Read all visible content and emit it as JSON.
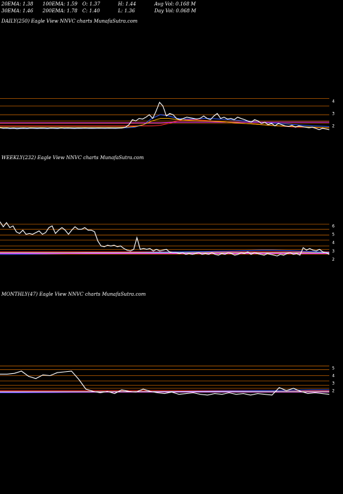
{
  "header": {
    "row1": [
      {
        "key": "ema20",
        "text": "20EMA: 1.38"
      },
      {
        "key": "ema100",
        "text": "100EMA: 1.59"
      },
      {
        "key": "open",
        "text": "O: 1.37"
      },
      {
        "key": "high",
        "text": "H: 1.44"
      },
      {
        "key": "avgvol",
        "text": "Avg Vol: 0.168 M"
      }
    ],
    "row2": [
      {
        "key": "ema30",
        "text": "30EMA: 1.46"
      },
      {
        "key": "ema200",
        "text": "200EMA: 1.78"
      },
      {
        "key": "close",
        "text": "C: 1.40"
      },
      {
        "key": "low",
        "text": "L: 1.36"
      },
      {
        "key": "dayvol",
        "text": "Day Vol: 0.068 M"
      }
    ]
  },
  "colors": {
    "background": "#000000",
    "price": "#ffffff",
    "level_lines": "#b85c00",
    "ema_red": "#ff2a2a",
    "ema_blue": "#2f5bff",
    "ema_magenta": "#ff33ff",
    "ema_orange": "#ffb000",
    "ema_white": "#ffffff"
  },
  "chart_data": [
    {
      "type": "line",
      "title": "DAILY(250) Eagle   View  NNVC charts MunafaSutra.com",
      "y_ticks": [
        "4",
        "3",
        "2"
      ],
      "level_lines": [
        4.2,
        3.6,
        2.9,
        2.4,
        2.2
      ],
      "price": [
        1.85,
        1.8,
        1.82,
        1.78,
        1.8,
        1.77,
        1.79,
        1.8,
        1.78,
        1.82,
        1.8,
        1.79,
        1.81,
        1.8,
        1.78,
        1.82,
        1.8,
        1.79,
        1.83,
        1.8,
        1.82,
        1.8,
        1.79,
        1.81,
        1.8,
        1.82,
        1.8,
        1.81,
        1.8,
        1.82,
        1.81,
        1.8,
        1.82,
        1.81,
        1.8,
        1.82,
        1.83,
        1.9,
        2.1,
        2.5,
        2.4,
        2.6,
        2.55,
        2.7,
        2.9,
        2.6,
        3.2,
        3.9,
        3.6,
        2.8,
        3.0,
        2.9,
        2.6,
        2.5,
        2.6,
        2.7,
        2.65,
        2.6,
        2.55,
        2.62,
        2.8,
        2.6,
        2.5,
        2.8,
        3.0,
        2.6,
        2.7,
        2.55,
        2.6,
        2.5,
        2.7,
        2.6,
        2.5,
        2.4,
        2.3,
        2.5,
        2.4,
        2.2,
        2.3,
        2.1,
        2.2,
        2.0,
        2.2,
        2.1,
        2.0,
        1.95,
        2.05,
        1.9,
        2.0,
        1.95,
        1.9,
        1.85,
        1.9,
        1.8,
        1.7,
        1.8,
        1.75,
        1.7
      ],
      "emas": [
        {
          "color": "ema_red",
          "values": [
            2.0,
            2.0,
            2.0,
            2.0,
            2.0,
            2.0,
            2.0,
            2.0,
            2.0,
            2.0,
            2.0,
            2.0,
            2.0,
            2.0,
            2.0,
            2.0,
            2.0,
            2.0,
            2.0,
            2.05,
            2.2,
            2.4,
            2.5,
            2.5,
            2.45,
            2.4,
            2.35,
            2.3,
            2.25,
            2.2,
            2.15,
            2.1,
            2.05,
            2.0,
            1.95,
            1.9,
            1.9,
            1.88,
            1.86,
            1.84
          ]
        },
        {
          "color": "ema_blue",
          "values": [
            1.85,
            1.85,
            1.85,
            1.85,
            1.85,
            1.85,
            1.85,
            1.85,
            1.85,
            1.85,
            1.85,
            1.85,
            1.85,
            1.85,
            1.85,
            1.85,
            1.9,
            2.1,
            2.6,
            2.9,
            2.8,
            2.6,
            2.55,
            2.55,
            2.6,
            2.6,
            2.55,
            2.5,
            2.45,
            2.4,
            2.35,
            2.3,
            2.25,
            2.2,
            2.15,
            2.1,
            2.05,
            2.0,
            1.98,
            1.95
          ]
        },
        {
          "color": "ema_magenta",
          "values": [
            2.25,
            2.25,
            2.25,
            2.25,
            2.25,
            2.25,
            2.25,
            2.25,
            2.25,
            2.25,
            2.25,
            2.25,
            2.25,
            2.25,
            2.25,
            2.25,
            2.25,
            2.25,
            2.25,
            2.25,
            2.28,
            2.3,
            2.3,
            2.3,
            2.3,
            2.3,
            2.3,
            2.3,
            2.3,
            2.3,
            2.3,
            2.3,
            2.3,
            2.3,
            2.3,
            2.3,
            2.3,
            2.3,
            2.3,
            2.3
          ]
        },
        {
          "color": "ema_orange",
          "values": [
            1.9,
            1.9,
            1.9,
            1.9,
            1.9,
            1.9,
            1.9,
            1.9,
            1.9,
            1.9,
            1.9,
            1.9,
            1.9,
            1.9,
            1.9,
            1.9,
            1.95,
            2.1,
            2.4,
            2.6,
            2.6,
            2.5,
            2.45,
            2.42,
            2.4,
            2.38,
            2.35,
            2.3,
            2.25,
            2.2,
            2.15,
            2.1,
            2.05,
            2.0,
            1.98,
            1.95,
            1.92,
            1.9,
            1.88,
            1.85
          ]
        }
      ]
    },
    {
      "type": "line",
      "title": "WEEKLY(232) Eagle   View  NNVC charts MunafaSutra.com",
      "y_ticks": [
        "6",
        "5",
        "4",
        "3",
        "2"
      ],
      "level_lines": [
        6.2,
        5.6,
        4.9,
        4.3,
        3.6,
        3.2,
        2.9,
        2.6
      ],
      "price": [
        6.5,
        5.9,
        6.4,
        5.8,
        6.0,
        5.3,
        5.1,
        5.5,
        5.0,
        5.1,
        5.0,
        5.2,
        5.4,
        5.0,
        5.2,
        5.8,
        6.0,
        5.1,
        5.5,
        5.8,
        5.5,
        5.0,
        5.5,
        5.9,
        5.6,
        5.6,
        5.8,
        5.5,
        5.5,
        5.3,
        4.2,
        3.6,
        3.5,
        3.7,
        3.6,
        3.7,
        3.5,
        3.6,
        3.3,
        3.1,
        3.0,
        3.2,
        4.6,
        3.2,
        3.3,
        3.2,
        3.3,
        3.0,
        3.2,
        3.0,
        3.1,
        3.2,
        2.9,
        2.8,
        2.8,
        2.7,
        2.8,
        2.6,
        2.7,
        2.6,
        2.7,
        2.8,
        2.6,
        2.7,
        2.6,
        2.8,
        2.6,
        2.5,
        2.7,
        2.6,
        2.8,
        2.7,
        2.5,
        2.6,
        2.8,
        2.7,
        2.9,
        2.6,
        2.8,
        2.7,
        2.6,
        2.5,
        2.7,
        2.6,
        2.5,
        2.4,
        2.6,
        2.5,
        2.7,
        2.8,
        2.6,
        2.7,
        2.5,
        3.4,
        3.1,
        3.3,
        3.1,
        3.0,
        3.2,
        2.9,
        2.8,
        2.6
      ],
      "emas": [
        {
          "color": "ema_red",
          "values": [
            2.9,
            2.9,
            2.9,
            2.9,
            2.9,
            2.9,
            2.9,
            2.9,
            2.9,
            2.9,
            2.9,
            2.9,
            2.9,
            2.9,
            2.9,
            2.9,
            2.9,
            2.9,
            2.9,
            2.9,
            2.9,
            2.9,
            2.9,
            2.9,
            2.9,
            2.9,
            2.9,
            2.9,
            2.9,
            2.9
          ]
        },
        {
          "color": "ema_blue",
          "values": [
            2.6,
            2.6,
            2.62,
            2.64,
            2.66,
            2.68,
            2.7,
            2.72,
            2.74,
            2.76,
            2.78,
            2.8,
            2.82,
            2.84,
            2.86,
            2.88,
            2.9,
            2.92,
            2.94,
            2.96,
            2.98,
            3.0,
            3.05,
            3.1,
            3.1,
            3.05,
            3.0,
            2.95,
            2.9,
            2.85
          ]
        },
        {
          "color": "ema_magenta",
          "values": [
            2.7,
            2.7,
            2.7,
            2.7,
            2.7,
            2.7,
            2.7,
            2.7,
            2.7,
            2.7,
            2.7,
            2.7,
            2.7,
            2.7,
            2.7,
            2.7,
            2.7,
            2.7,
            2.7,
            2.7,
            2.7,
            2.7,
            2.7,
            2.7,
            2.7,
            2.7,
            2.7,
            2.7,
            2.7,
            2.7
          ]
        },
        {
          "color": "ema_white",
          "values": [
            2.8,
            2.8,
            2.8,
            2.8,
            2.8,
            2.8,
            2.8,
            2.8,
            2.8,
            2.8,
            2.8,
            2.8,
            2.8,
            2.8,
            2.8,
            2.8,
            2.8,
            2.8,
            2.8,
            2.8,
            2.8,
            2.8,
            2.8,
            2.8,
            2.8,
            2.8,
            2.8,
            2.8,
            2.8,
            2.8
          ]
        }
      ]
    },
    {
      "type": "line",
      "title": "MONTHLY(47) Eagle   View  NNVC charts MunafaSutra.com",
      "y_ticks": [
        "5",
        "4",
        "3",
        "2"
      ],
      "level_lines": [
        5.3,
        4.8,
        4.0,
        3.3,
        2.7,
        2.3
      ],
      "price": [
        4.2,
        4.2,
        4.3,
        4.6,
        3.9,
        3.6,
        4.1,
        4.0,
        4.4,
        4.5,
        4.6,
        3.5,
        2.2,
        1.9,
        1.7,
        1.9,
        1.6,
        2.1,
        1.9,
        1.8,
        2.2,
        1.9,
        1.7,
        1.6,
        1.8,
        1.5,
        1.6,
        1.7,
        1.5,
        1.4,
        1.6,
        1.5,
        1.7,
        1.5,
        1.6,
        1.4,
        1.6,
        1.5,
        1.4,
        2.4,
        2.0,
        2.3,
        1.9,
        1.6,
        1.7,
        1.6,
        1.5
      ],
      "emas": [
        {
          "color": "ema_red",
          "values": [
            2.0,
            2.0,
            2.0,
            2.0,
            2.0,
            2.0,
            2.0,
            2.0,
            2.0,
            2.0,
            2.0,
            2.0,
            2.0,
            2.0,
            2.0,
            2.0,
            2.0,
            2.0,
            2.0,
            2.0
          ]
        },
        {
          "color": "ema_blue",
          "values": [
            1.7,
            1.7,
            1.72,
            1.74,
            1.76,
            1.78,
            1.8,
            1.82,
            1.84,
            1.86,
            1.88,
            1.9,
            1.92,
            1.94,
            1.96,
            1.98,
            2.0,
            2.05,
            2.1,
            2.1
          ]
        },
        {
          "color": "ema_magenta",
          "values": [
            1.8,
            1.8,
            1.8,
            1.8,
            1.8,
            1.8,
            1.8,
            1.8,
            1.8,
            1.8,
            1.8,
            1.8,
            1.8,
            1.8,
            1.8,
            1.8,
            1.8,
            1.8,
            1.8,
            1.8
          ]
        },
        {
          "color": "ema_white",
          "values": [
            1.85,
            1.85,
            1.85,
            1.85,
            1.85,
            1.85,
            1.85,
            1.85,
            1.85,
            1.85,
            1.85,
            1.85,
            1.85,
            1.85,
            1.85,
            1.85,
            1.85,
            1.85,
            1.85,
            1.85
          ]
        }
      ]
    }
  ]
}
